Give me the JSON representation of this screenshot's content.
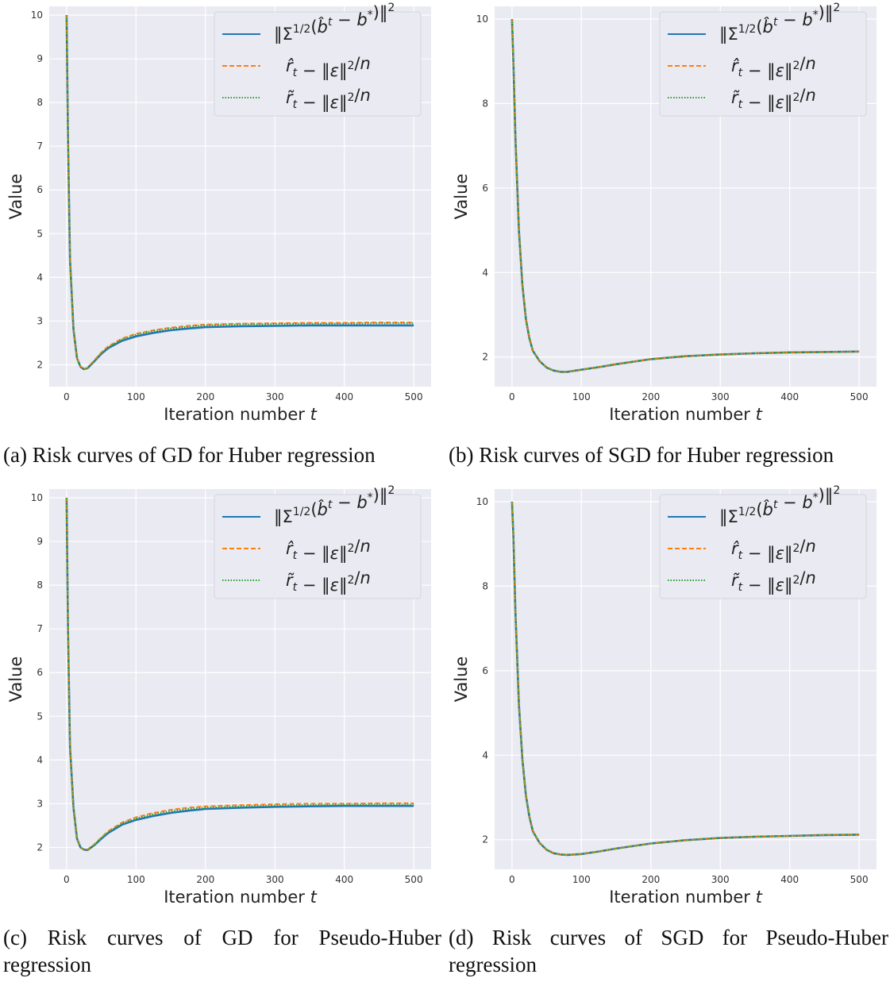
{
  "chart_data": [
    {
      "type": "line",
      "id": "a",
      "caption": "(a) Risk curves of GD for Huber regression",
      "xlabel": "Iteration number t",
      "ylabel": "Value",
      "xlim": [
        -25,
        525
      ],
      "ylim": [
        1.5,
        10.2
      ],
      "xticks": [
        0,
        100,
        200,
        300,
        400,
        500
      ],
      "yticks": [
        2,
        3,
        4,
        5,
        6,
        7,
        8,
        9,
        10
      ],
      "grid": true,
      "legend_position": "top-right",
      "x": [
        0,
        2,
        5,
        10,
        15,
        20,
        25,
        30,
        40,
        50,
        60,
        80,
        100,
        125,
        150,
        175,
        200,
        250,
        300,
        350,
        400,
        450,
        500
      ],
      "series": [
        {
          "name": "‖Σ^{1/2}(b̂^t − b*)‖²",
          "color": "#1f77b4",
          "style": "solid",
          "values": [
            10.0,
            7.2,
            4.4,
            2.8,
            2.15,
            1.95,
            1.9,
            1.92,
            2.08,
            2.25,
            2.38,
            2.55,
            2.65,
            2.73,
            2.79,
            2.83,
            2.86,
            2.88,
            2.89,
            2.9,
            2.9,
            2.9,
            2.9
          ]
        },
        {
          "name": "r̂_t − ‖ε‖²/n",
          "color": "#ff7f0e",
          "style": "dashed",
          "values": [
            10.0,
            7.2,
            4.4,
            2.8,
            2.15,
            1.95,
            1.9,
            1.93,
            2.1,
            2.28,
            2.42,
            2.6,
            2.71,
            2.79,
            2.85,
            2.89,
            2.92,
            2.94,
            2.95,
            2.96,
            2.96,
            2.97,
            2.97
          ]
        },
        {
          "name": "r̃_t − ‖ε‖²/n",
          "color": "#2ca02c",
          "style": "dotted",
          "values": [
            10.0,
            7.2,
            4.4,
            2.8,
            2.15,
            1.95,
            1.9,
            1.92,
            2.09,
            2.27,
            2.4,
            2.58,
            2.69,
            2.77,
            2.83,
            2.87,
            2.9,
            2.92,
            2.93,
            2.94,
            2.94,
            2.95,
            2.95
          ]
        }
      ]
    },
    {
      "type": "line",
      "id": "b",
      "caption": "(b) Risk curves of SGD for Huber regression",
      "xlabel": "Iteration number t",
      "ylabel": "Value",
      "xlim": [
        -25,
        525
      ],
      "ylim": [
        1.3,
        10.3
      ],
      "xticks": [
        0,
        100,
        200,
        300,
        400,
        500
      ],
      "yticks": [
        2,
        4,
        6,
        8,
        10
      ],
      "grid": true,
      "legend_position": "top-right",
      "x": [
        0,
        2,
        5,
        10,
        15,
        20,
        25,
        30,
        40,
        50,
        60,
        70,
        80,
        100,
        125,
        150,
        200,
        250,
        300,
        350,
        400,
        450,
        500
      ],
      "series": [
        {
          "name": "‖Σ^{1/2}(b̂^t − b*)‖²",
          "color": "#1f77b4",
          "style": "solid",
          "values": [
            10.0,
            9.0,
            7.2,
            5.0,
            3.7,
            2.9,
            2.45,
            2.15,
            1.9,
            1.75,
            1.68,
            1.65,
            1.65,
            1.7,
            1.76,
            1.83,
            1.95,
            2.02,
            2.06,
            2.09,
            2.11,
            2.12,
            2.13
          ]
        },
        {
          "name": "r̂_t − ‖ε‖²/n",
          "color": "#ff7f0e",
          "style": "dashed",
          "values": [
            10.0,
            9.0,
            7.2,
            5.0,
            3.7,
            2.9,
            2.45,
            2.15,
            1.9,
            1.75,
            1.68,
            1.65,
            1.65,
            1.7,
            1.76,
            1.83,
            1.95,
            2.02,
            2.06,
            2.09,
            2.11,
            2.12,
            2.13
          ]
        },
        {
          "name": "r̃_t − ‖ε‖²/n",
          "color": "#2ca02c",
          "style": "dotted",
          "values": [
            10.0,
            9.0,
            7.2,
            5.0,
            3.7,
            2.9,
            2.45,
            2.15,
            1.9,
            1.75,
            1.68,
            1.65,
            1.65,
            1.7,
            1.76,
            1.83,
            1.95,
            2.02,
            2.06,
            2.09,
            2.11,
            2.12,
            2.13
          ]
        }
      ]
    },
    {
      "type": "line",
      "id": "c",
      "caption": "(c) Risk curves of GD for Pseudo-Huber regression",
      "xlabel": "Iteration number t",
      "ylabel": "Value",
      "xlim": [
        -25,
        525
      ],
      "ylim": [
        1.5,
        10.2
      ],
      "xticks": [
        0,
        100,
        200,
        300,
        400,
        500
      ],
      "yticks": [
        2,
        3,
        4,
        5,
        6,
        7,
        8,
        9,
        10
      ],
      "grid": true,
      "legend_position": "top-right",
      "x": [
        0,
        2,
        5,
        10,
        15,
        20,
        25,
        30,
        40,
        50,
        60,
        80,
        100,
        125,
        150,
        175,
        200,
        250,
        300,
        350,
        400,
        450,
        500
      ],
      "series": [
        {
          "name": "‖Σ^{1/2}(b̂^t − b*)‖²",
          "color": "#1f77b4",
          "style": "solid",
          "values": [
            10.0,
            7.0,
            4.3,
            2.9,
            2.2,
            2.0,
            1.95,
            1.94,
            2.05,
            2.2,
            2.33,
            2.52,
            2.63,
            2.72,
            2.79,
            2.84,
            2.88,
            2.91,
            2.93,
            2.94,
            2.95,
            2.95,
            2.95
          ]
        },
        {
          "name": "r̂_t − ‖ε‖²/n",
          "color": "#ff7f0e",
          "style": "dashed",
          "values": [
            10.0,
            7.0,
            4.3,
            2.9,
            2.2,
            2.0,
            1.95,
            1.95,
            2.07,
            2.23,
            2.37,
            2.57,
            2.69,
            2.79,
            2.86,
            2.91,
            2.94,
            2.97,
            2.99,
            3.0,
            3.0,
            3.01,
            3.01
          ]
        },
        {
          "name": "r̃_t − ‖ε‖²/n",
          "color": "#2ca02c",
          "style": "dotted",
          "values": [
            10.0,
            7.0,
            4.3,
            2.9,
            2.2,
            2.0,
            1.95,
            1.94,
            2.06,
            2.21,
            2.35,
            2.55,
            2.66,
            2.76,
            2.83,
            2.88,
            2.91,
            2.94,
            2.96,
            2.97,
            2.98,
            2.98,
            2.98
          ]
        }
      ]
    },
    {
      "type": "line",
      "id": "d",
      "caption": "(d) Risk curves of SGD for Pseudo-Huber regression",
      "xlabel": "Iteration number t",
      "ylabel": "Value",
      "xlim": [
        -25,
        525
      ],
      "ylim": [
        1.3,
        10.3
      ],
      "xticks": [
        0,
        100,
        200,
        300,
        400,
        500
      ],
      "yticks": [
        2,
        4,
        6,
        8,
        10
      ],
      "grid": true,
      "legend_position": "top-right",
      "x": [
        0,
        2,
        5,
        10,
        15,
        20,
        25,
        30,
        40,
        50,
        60,
        70,
        80,
        100,
        125,
        150,
        200,
        250,
        300,
        350,
        400,
        450,
        500
      ],
      "series": [
        {
          "name": "‖Σ^{1/2}(b̂^t − b*)‖²",
          "color": "#1f77b4",
          "style": "solid",
          "values": [
            10.0,
            9.2,
            7.4,
            5.2,
            3.9,
            3.05,
            2.55,
            2.2,
            1.92,
            1.76,
            1.68,
            1.65,
            1.64,
            1.66,
            1.72,
            1.79,
            1.91,
            1.99,
            2.04,
            2.07,
            2.09,
            2.11,
            2.12
          ]
        },
        {
          "name": "r̂_t − ‖ε‖²/n",
          "color": "#ff7f0e",
          "style": "dashed",
          "values": [
            10.0,
            9.2,
            7.4,
            5.2,
            3.9,
            3.05,
            2.55,
            2.2,
            1.92,
            1.76,
            1.68,
            1.65,
            1.64,
            1.66,
            1.72,
            1.79,
            1.91,
            1.99,
            2.04,
            2.07,
            2.09,
            2.11,
            2.12
          ]
        },
        {
          "name": "r̃_t − ‖ε‖²/n",
          "color": "#2ca02c",
          "style": "dotted",
          "values": [
            10.0,
            9.2,
            7.4,
            5.2,
            3.9,
            3.05,
            2.55,
            2.2,
            1.92,
            1.76,
            1.68,
            1.65,
            1.64,
            1.66,
            1.72,
            1.79,
            1.91,
            1.99,
            2.04,
            2.07,
            2.09,
            2.11,
            2.12
          ]
        }
      ]
    }
  ],
  "colors": {
    "plot_bg": "#eaeaf2",
    "grid": "#ffffff"
  }
}
